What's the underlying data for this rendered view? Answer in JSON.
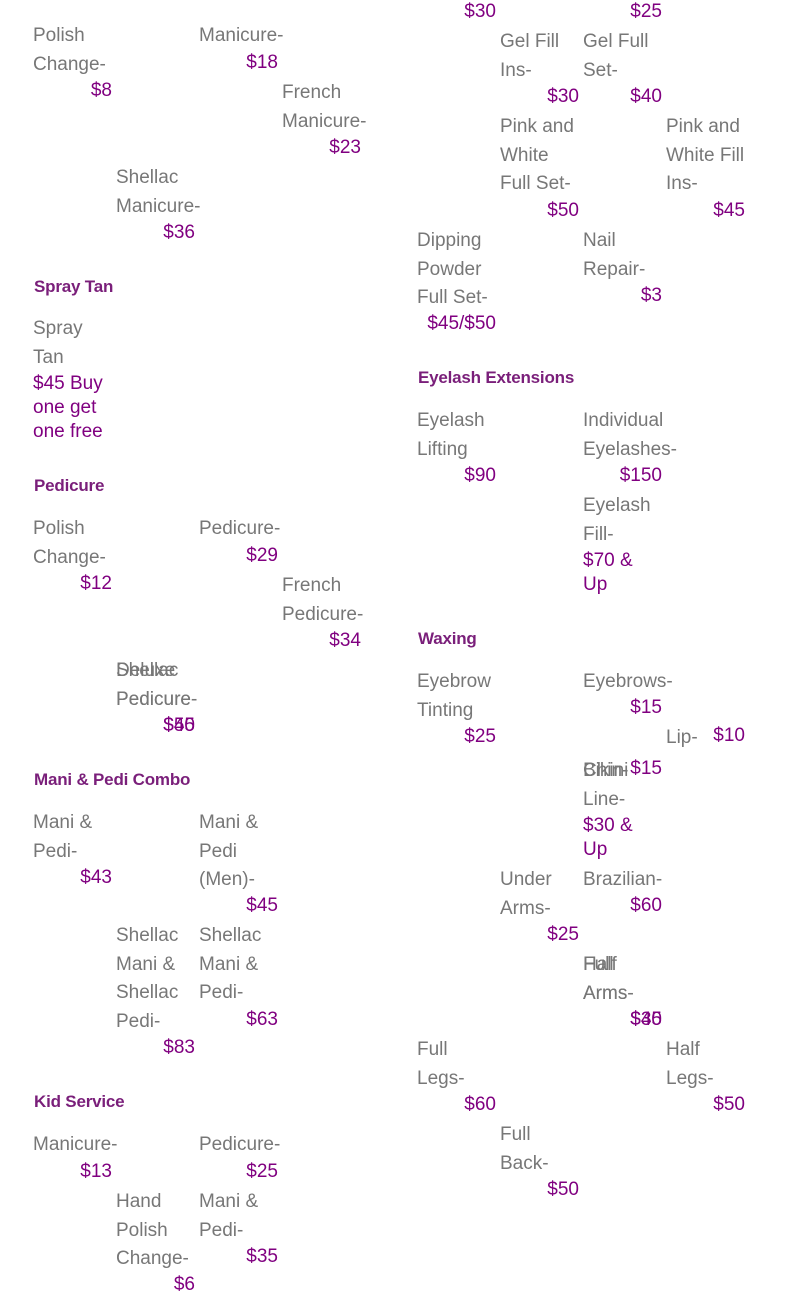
{
  "sections": [
    {
      "key": "nails_top_left",
      "items": [
        {
          "name": "Polish Change-",
          "price": "$8"
        },
        {
          "name": "Manicure-",
          "price": "$18"
        },
        {
          "name": "French Manicure-",
          "price": "$23"
        },
        {
          "name": "Shellac Manicure-",
          "price": "$36"
        }
      ]
    },
    {
      "key": "spray_tan",
      "title": "Spray Tan",
      "items": [
        {
          "name": "Spray Tan",
          "price": "$45 Buy one get one free"
        }
      ]
    },
    {
      "key": "pedicure",
      "title": "Pedicure",
      "items": [
        {
          "name": "Polish Change-",
          "price": "$12"
        },
        {
          "name": "Pedicure-",
          "price": "$29"
        },
        {
          "name": "French Pedicure-",
          "price": "$34"
        },
        {
          "name": "Shellac Pedicure-",
          "price": "$45"
        },
        {
          "name": "Deluxe Pedicure-",
          "price": "$50"
        }
      ]
    },
    {
      "key": "mani_pedi",
      "title": "Mani & Pedi Combo",
      "items": [
        {
          "name": "Mani & Pedi-",
          "price": "$43"
        },
        {
          "name": "Mani & Pedi (Men)-",
          "price": "$45"
        },
        {
          "name": "Shellac Mani & Shellac Pedi-",
          "price": "$83"
        },
        {
          "name": "Shellac Mani & Pedi-",
          "price": "$63"
        }
      ]
    },
    {
      "key": "kid",
      "title": "Kid Service",
      "items": [
        {
          "name": "Manicure-",
          "price": "$13"
        },
        {
          "name": "Pedicure-",
          "price": "$25"
        },
        {
          "name": "Hand Polish Change-",
          "price": "$6"
        },
        {
          "name": "Mani & Pedi-",
          "price": "$35"
        }
      ]
    },
    {
      "key": "acrylic",
      "items": [
        {
          "name": "",
          "price": "$30"
        },
        {
          "name": "",
          "price": "$25"
        },
        {
          "name": "Gel Fill Ins-",
          "price": "$30"
        },
        {
          "name": "Gel Full Set-",
          "price": "$40"
        },
        {
          "name": "Pink and White Full Set-",
          "price": "$50"
        },
        {
          "name": "Pink and White Fill Ins-",
          "price": "$45"
        },
        {
          "name": "Dipping Powder Full Set-",
          "price": "$45/$50"
        },
        {
          "name": "Nail Repair-",
          "price": "$3"
        }
      ]
    },
    {
      "key": "eyelash",
      "title": "Eyelash Extensions",
      "items": [
        {
          "name": "Eyelash Lifting",
          "price": "$90"
        },
        {
          "name": "Individual Eyelashes-",
          "price": "$150"
        },
        {
          "name": "Eyelash Fill-",
          "price": "$70 & Up"
        }
      ]
    },
    {
      "key": "waxing",
      "title": "Waxing",
      "items": [
        {
          "name": "Eyebrow Tinting",
          "price": "$25"
        },
        {
          "name": "Eyebrows-",
          "price": "$15"
        },
        {
          "name": "Lip-",
          "price": "$10"
        },
        {
          "name": "Chin-",
          "price": "$15"
        },
        {
          "name": "Bikini Line-",
          "price": "$30 & Up"
        },
        {
          "name": "Under Arms-",
          "price": "$25"
        },
        {
          "name": "Brazilian-",
          "price": "$60"
        },
        {
          "name": "Half Arms-",
          "price": "$35"
        },
        {
          "name": "Full Arms-",
          "price": "$40"
        },
        {
          "name": "Full Legs-",
          "price": "$60"
        },
        {
          "name": "Half Legs-",
          "price": "$50"
        },
        {
          "name": "Full Back-",
          "price": "$50"
        }
      ]
    }
  ]
}
